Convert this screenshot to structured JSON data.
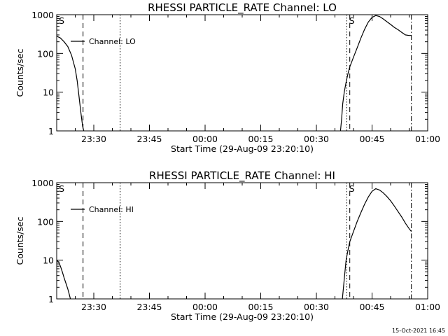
{
  "footer": {
    "timestamp": "15-Oct-2021 16:45"
  },
  "chart_data": [
    {
      "type": "line",
      "title": "RHESSI PARTICLE_RATE Channel: LO",
      "xlabel": "Start Time (29-Aug-09 23:20:10)",
      "ylabel": "Counts/sec",
      "x_unit": "minutes since 23:20:10",
      "xlim": [
        0,
        100
      ],
      "ylim": [
        1,
        1000
      ],
      "yscale": "log",
      "x_ticks": [
        {
          "x": 10.0,
          "label": "23:30"
        },
        {
          "x": 25.0,
          "label": "23:45"
        },
        {
          "x": 40.0,
          "label": "00:00"
        },
        {
          "x": 55.0,
          "label": "00:15"
        },
        {
          "x": 70.0,
          "label": "00:30"
        },
        {
          "x": 85.0,
          "label": "00:45"
        },
        {
          "x": 100.0,
          "label": "01:00"
        }
      ],
      "y_ticks": [
        {
          "y": 1,
          "label": "1"
        },
        {
          "y": 10,
          "label": "10"
        },
        {
          "y": 100,
          "label": "100"
        },
        {
          "y": 1000,
          "label": "1000"
        }
      ],
      "legend": {
        "label": "Channel: LO",
        "position": "top-left"
      },
      "markers": [
        {
          "x": 0.4,
          "label": "S"
        },
        {
          "x": 78.6,
          "label": "S"
        }
      ],
      "vlines": [
        {
          "x": 7.1,
          "style": "dashed"
        },
        {
          "x": 17.1,
          "style": "dotted"
        },
        {
          "x": 78.2,
          "style": "dotted"
        },
        {
          "x": 79.0,
          "style": "dashed"
        },
        {
          "x": 95.6,
          "style": "dashdot"
        }
      ],
      "series": [
        {
          "name": "Channel: LO",
          "segments": [
            [
              [
                0,
                280
              ],
              [
                1,
                250
              ],
              [
                2,
                200
              ],
              [
                3,
                150
              ],
              [
                4,
                90
              ],
              [
                5,
                40
              ],
              [
                5.5,
                20
              ],
              [
                6,
                8
              ],
              [
                6.5,
                3
              ],
              [
                7,
                1.3
              ],
              [
                7.3,
                1
              ]
            ],
            [
              [
                76.5,
                1
              ],
              [
                76.8,
                2
              ],
              [
                77.1,
                5
              ],
              [
                77.5,
                10
              ],
              [
                78,
                18
              ],
              [
                78.5,
                30
              ],
              [
                79,
                45
              ],
              [
                80,
                80
              ],
              [
                81,
                140
              ],
              [
                82,
                250
              ],
              [
                83,
                420
              ],
              [
                84,
                650
              ],
              [
                85,
                850
              ],
              [
                86,
                950
              ],
              [
                87,
                900
              ],
              [
                88,
                780
              ],
              [
                89,
                660
              ],
              [
                90,
                560
              ],
              [
                91,
                470
              ],
              [
                92,
                410
              ],
              [
                93,
                350
              ],
              [
                94,
                300
              ],
              [
                95,
                290
              ],
              [
                95.6,
                290
              ]
            ]
          ]
        }
      ]
    },
    {
      "type": "line",
      "title": "RHESSI PARTICLE_RATE Channel: HI",
      "xlabel": "Start Time (29-Aug-09 23:20:10)",
      "ylabel": "Counts/sec",
      "x_unit": "minutes since 23:20:10",
      "xlim": [
        0,
        100
      ],
      "ylim": [
        1,
        1000
      ],
      "yscale": "log",
      "x_ticks": [
        {
          "x": 10.0,
          "label": "23:30"
        },
        {
          "x": 25.0,
          "label": "23:45"
        },
        {
          "x": 40.0,
          "label": "00:00"
        },
        {
          "x": 55.0,
          "label": "00:15"
        },
        {
          "x": 70.0,
          "label": "00:30"
        },
        {
          "x": 85.0,
          "label": "00:45"
        },
        {
          "x": 100.0,
          "label": "01:00"
        }
      ],
      "y_ticks": [
        {
          "y": 1,
          "label": "1"
        },
        {
          "y": 10,
          "label": "10"
        },
        {
          "y": 100,
          "label": "100"
        },
        {
          "y": 1000,
          "label": "1000"
        }
      ],
      "legend": {
        "label": "Channel: HI",
        "position": "top-left"
      },
      "markers": [
        {
          "x": 0.4,
          "label": "S"
        },
        {
          "x": 78.6,
          "label": "S"
        }
      ],
      "vlines": [
        {
          "x": 7.1,
          "style": "dashed"
        },
        {
          "x": 17.1,
          "style": "dotted"
        },
        {
          "x": 78.2,
          "style": "dotted"
        },
        {
          "x": 79.0,
          "style": "dashed"
        },
        {
          "x": 95.6,
          "style": "dashdot"
        }
      ],
      "series": [
        {
          "name": "Channel: HI",
          "segments": [
            [
              [
                0,
                10
              ],
              [
                0.5,
                9
              ],
              [
                1,
                7
              ],
              [
                1.5,
                5
              ],
              [
                2,
                3.5
              ],
              [
                2.5,
                2.5
              ],
              [
                3,
                1.8
              ],
              [
                3.4,
                1.3
              ],
              [
                3.7,
                1
              ]
            ],
            [
              [
                77,
                1
              ],
              [
                77.3,
                2
              ],
              [
                77.7,
                5
              ],
              [
                78,
                10
              ],
              [
                78.5,
                18
              ],
              [
                79,
                30
              ],
              [
                80,
                55
              ],
              [
                81,
                100
              ],
              [
                82,
                170
              ],
              [
                83,
                280
              ],
              [
                84,
                430
              ],
              [
                85,
                600
              ],
              [
                86,
                700
              ],
              [
                87,
                650
              ],
              [
                88,
                550
              ],
              [
                89,
                440
              ],
              [
                90,
                340
              ],
              [
                91,
                250
              ],
              [
                92,
                180
              ],
              [
                93,
                130
              ],
              [
                94,
                90
              ],
              [
                95,
                65
              ],
              [
                95.6,
                55
              ]
            ]
          ]
        }
      ]
    }
  ]
}
